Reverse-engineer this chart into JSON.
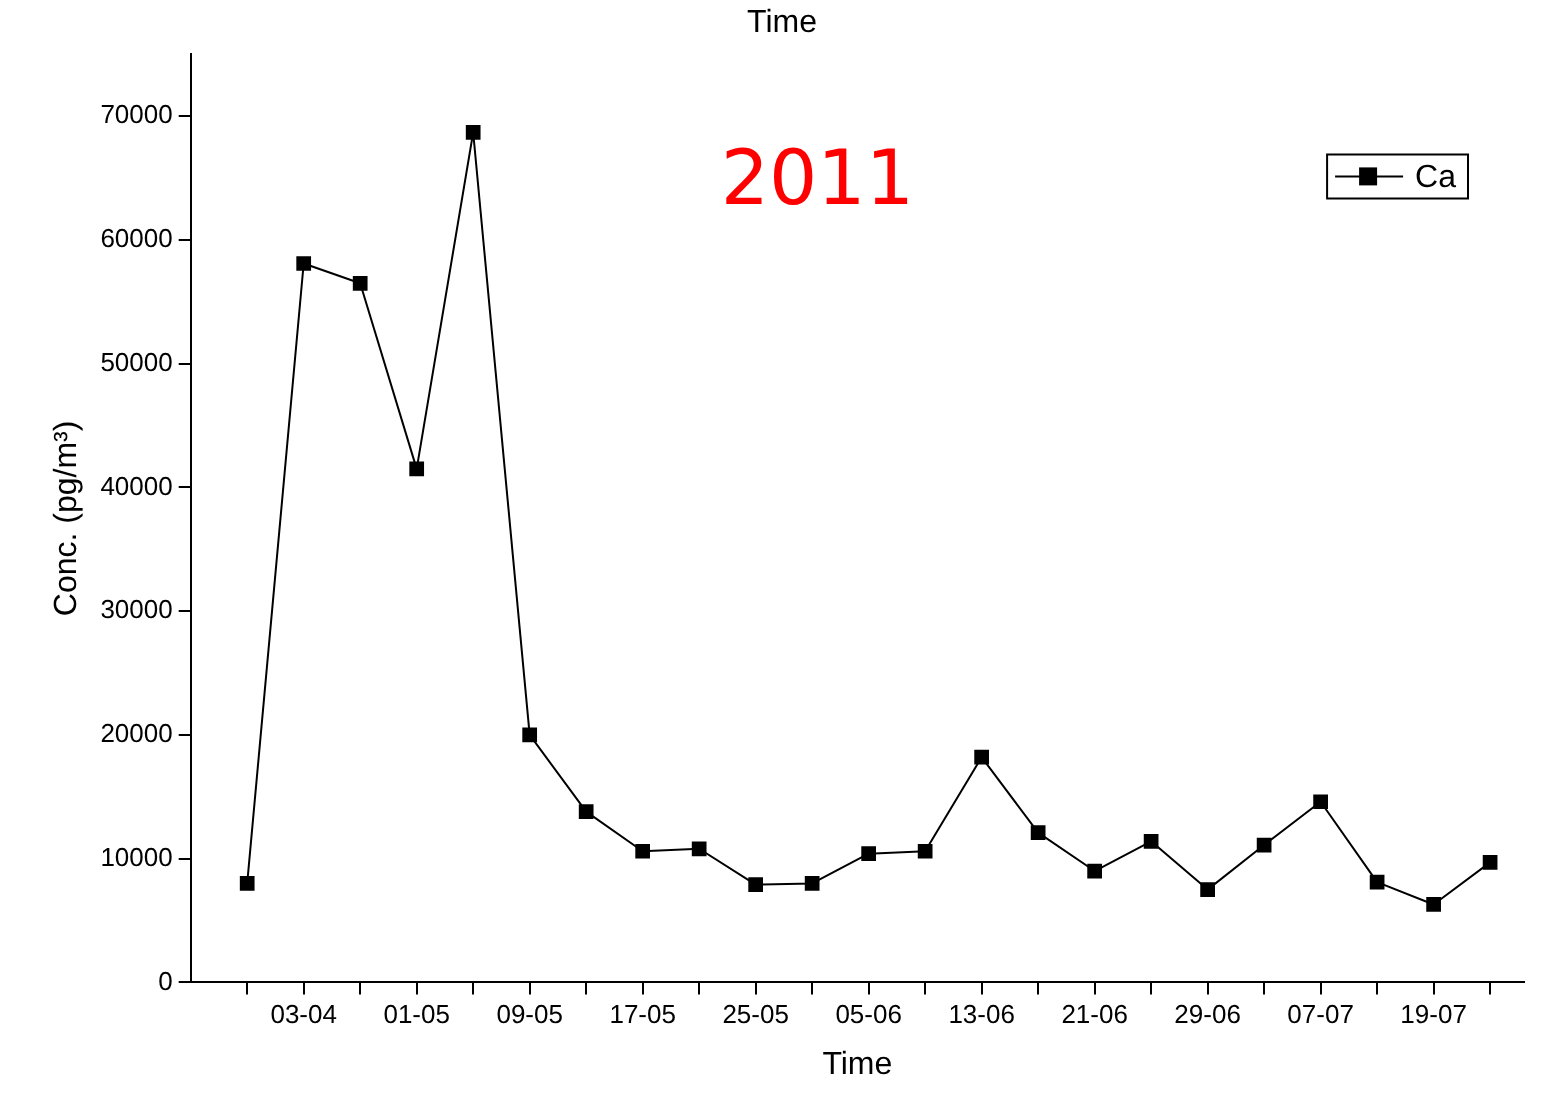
{
  "chart_data": {
    "type": "line",
    "title": "Time",
    "xlabel": "Time",
    "ylabel": "Conc. (pg/m³)",
    "annotations": [
      "2011"
    ],
    "categories": [
      null,
      "03-04",
      null,
      "01-05",
      null,
      "09-05",
      null,
      "17-05",
      null,
      "25-05",
      null,
      "05-06",
      null,
      "13-06",
      null,
      "21-06",
      null,
      "29-06",
      null,
      "07-07",
      null,
      "19-07",
      null
    ],
    "series": [
      {
        "name": "Ca",
        "color": "#000000",
        "values": [
          8000,
          58100,
          56500,
          41500,
          68700,
          20000,
          13800,
          10600,
          10800,
          7900,
          8000,
          10400,
          10600,
          18200,
          12100,
          9000,
          11400,
          7500,
          11100,
          14600,
          8100,
          6300,
          9700
        ]
      }
    ],
    "ylim": [
      0,
      75000
    ],
    "yticks": [
      0,
      10000,
      20000,
      30000,
      40000,
      50000,
      60000,
      70000
    ],
    "grid": false,
    "legend": "top right",
    "marker": "square",
    "line_style": "solid"
  }
}
